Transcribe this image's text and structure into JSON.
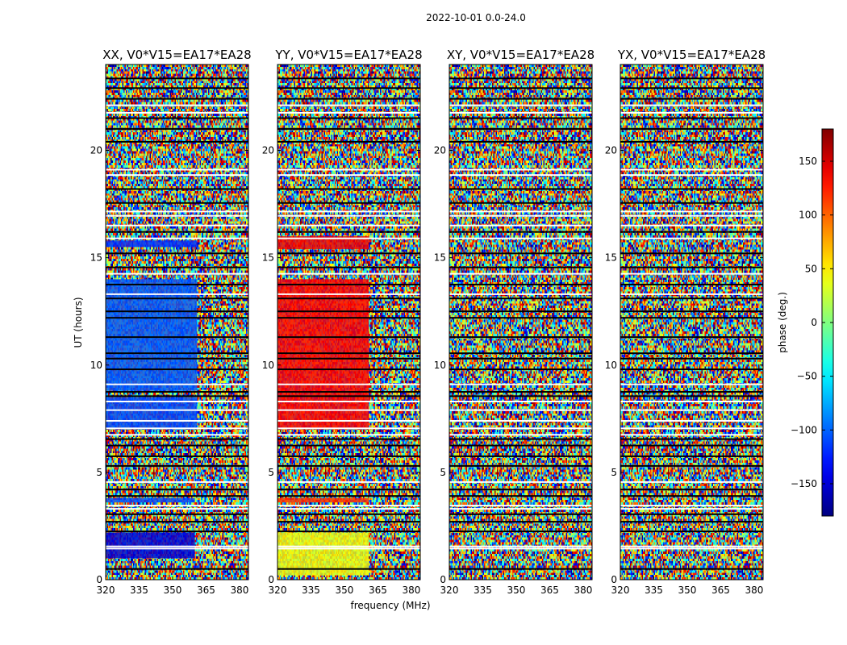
{
  "chart_data": {
    "type": "heatmap",
    "suptitle": "2022-10-01 0.0-24.0",
    "xlabel": "frequency (MHz)",
    "ylabel": "UT (hours)",
    "xlim": [
      320,
      384
    ],
    "ylim": [
      0,
      24
    ],
    "xticks": [
      320,
      335,
      350,
      365,
      380
    ],
    "yticks": [
      0,
      5,
      10,
      15,
      20
    ],
    "colorbar": {
      "label": "phase (deg.)",
      "range": [
        -180,
        180
      ],
      "ticks": [
        150,
        100,
        50,
        0,
        -50,
        -100,
        -150
      ],
      "tick_labels": [
        "150",
        "100",
        "50",
        "0",
        "−50",
        "−100",
        "−150"
      ],
      "colormap": "jet"
    },
    "panels": [
      {
        "title": "XX, V0*V15=EA17*EA28",
        "coherent_phase": [
          {
            "t_start": 1.0,
            "t_end": 2.2,
            "f_end": 360,
            "phase": -150
          },
          {
            "t_start": 3.6,
            "t_end": 3.8,
            "f_end": 360,
            "phase": -110
          },
          {
            "t_start": 7.0,
            "t_end": 8.5,
            "f_end": 361,
            "phase": -110
          },
          {
            "t_start": 8.8,
            "t_end": 14.0,
            "f_end": 361,
            "phase": -105
          },
          {
            "t_start": 15.5,
            "t_end": 15.8,
            "f_end": 361,
            "phase": -120
          }
        ]
      },
      {
        "title": "YY, V0*V15=EA17*EA28",
        "coherent_phase": [
          {
            "t_start": 0.2,
            "t_end": 2.2,
            "f_end": 361,
            "phase": 40
          },
          {
            "t_start": 3.6,
            "t_end": 3.8,
            "f_end": 361,
            "phase": 120
          },
          {
            "t_start": 7.0,
            "t_end": 14.0,
            "f_end": 361,
            "phase": 135
          },
          {
            "t_start": 15.4,
            "t_end": 16.0,
            "f_end": 361,
            "phase": 140
          }
        ]
      },
      {
        "title": "XY, V0*V15=EA17*EA28",
        "coherent_phase": []
      },
      {
        "title": "YX, V0*V15=EA17*EA28",
        "coherent_phase": []
      }
    ],
    "flagged_rows": [
      {
        "t": 0.5,
        "color": "black"
      },
      {
        "t": 1.45,
        "color": "white"
      },
      {
        "t": 1.55,
        "color": "white"
      },
      {
        "t": 2.25,
        "color": "black"
      },
      {
        "t": 2.7,
        "color": "black"
      },
      {
        "t": 3.05,
        "color": "black"
      },
      {
        "t": 3.3,
        "color": "white"
      },
      {
        "t": 3.45,
        "color": "white"
      },
      {
        "t": 3.9,
        "color": "black"
      },
      {
        "t": 4.2,
        "color": "black"
      },
      {
        "t": 4.55,
        "color": "white"
      },
      {
        "t": 5.3,
        "color": "black"
      },
      {
        "t": 5.75,
        "color": "black"
      },
      {
        "t": 6.25,
        "color": "black"
      },
      {
        "t": 6.55,
        "color": "black"
      },
      {
        "t": 6.75,
        "color": "white"
      },
      {
        "t": 7.05,
        "color": "white"
      },
      {
        "t": 7.4,
        "color": "white"
      },
      {
        "t": 7.9,
        "color": "white"
      },
      {
        "t": 8.3,
        "color": "white"
      },
      {
        "t": 8.55,
        "color": "black"
      },
      {
        "t": 8.75,
        "color": "black"
      },
      {
        "t": 9.1,
        "color": "white"
      },
      {
        "t": 9.8,
        "color": "black"
      },
      {
        "t": 10.3,
        "color": "black"
      },
      {
        "t": 10.55,
        "color": "black"
      },
      {
        "t": 11.3,
        "color": "black"
      },
      {
        "t": 12.2,
        "color": "black"
      },
      {
        "t": 12.5,
        "color": "black"
      },
      {
        "t": 13.1,
        "color": "black"
      },
      {
        "t": 13.3,
        "color": "white"
      },
      {
        "t": 13.75,
        "color": "black"
      },
      {
        "t": 14.25,
        "color": "white"
      },
      {
        "t": 14.55,
        "color": "black"
      },
      {
        "t": 15.2,
        "color": "black"
      },
      {
        "t": 15.9,
        "color": "white"
      },
      {
        "t": 16.2,
        "color": "black"
      },
      {
        "t": 16.5,
        "color": "white"
      },
      {
        "t": 16.95,
        "color": "white"
      },
      {
        "t": 17.15,
        "color": "white"
      },
      {
        "t": 17.55,
        "color": "black"
      },
      {
        "t": 18.2,
        "color": "black"
      },
      {
        "t": 18.85,
        "color": "white"
      },
      {
        "t": 19.1,
        "color": "white"
      },
      {
        "t": 20.4,
        "color": "black"
      },
      {
        "t": 21.0,
        "color": "black"
      },
      {
        "t": 21.5,
        "color": "black"
      },
      {
        "t": 21.75,
        "color": "white"
      },
      {
        "t": 22.1,
        "color": "white"
      },
      {
        "t": 22.4,
        "color": "black"
      },
      {
        "t": 22.9,
        "color": "black"
      },
      {
        "t": 23.35,
        "color": "black"
      }
    ]
  }
}
